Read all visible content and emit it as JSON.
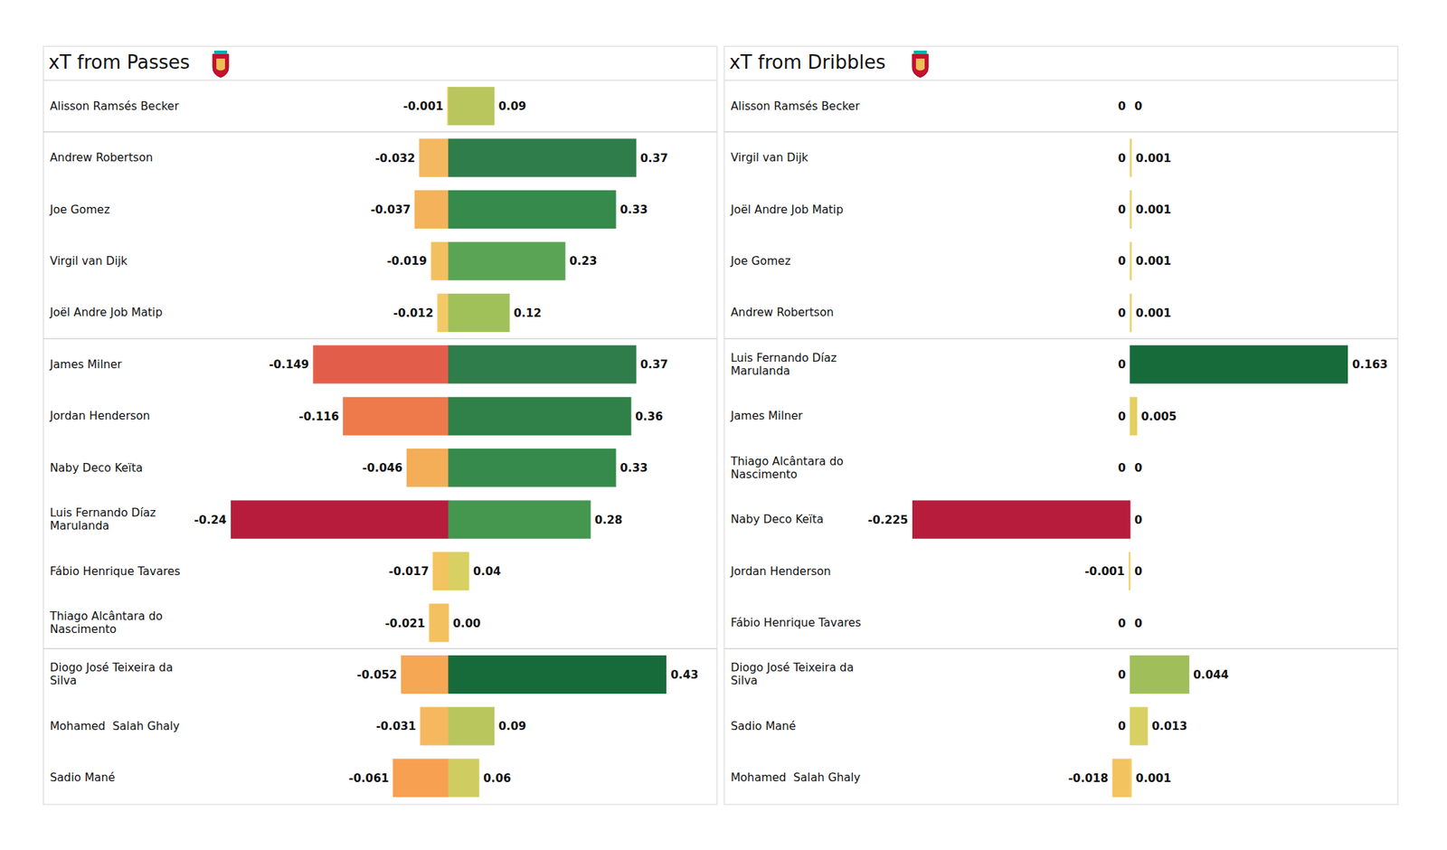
{
  "chart_data": [
    {
      "type": "bar",
      "orientation": "horizontal",
      "title": "xT from Passes",
      "data_labels": true,
      "tick_labels": "y",
      "categories": [
        "Alisson Ramsés Becker",
        "Andrew Robertson",
        "Joe Gomez",
        "Virgil van Dijk",
        "Joël Andre Job Matip",
        "James Milner",
        "Jordan Henderson",
        "Naby Deco Keïta",
        "Luis Fernando Díaz Marulanda",
        "Fábio Henrique Tavares",
        "Thiago Alcântara do Nascimento",
        "Diogo José Teixeira da Silva",
        "Mohamed  Salah Ghaly",
        "Sadio Mané"
      ],
      "xlim": [
        -0.24,
        0.43
      ],
      "series": [
        {
          "values": [
            -0.001,
            -0.032,
            -0.037,
            -0.019,
            -0.012,
            -0.149,
            -0.116,
            -0.046,
            -0.24,
            -0.017,
            -0.021,
            -0.052,
            -0.031,
            -0.061
          ],
          "colors": [
            "#f3d066",
            "#f4b860",
            "#f4b25a",
            "#f3c060",
            "#f3c966",
            "#e35e4a",
            "#ee7a4c",
            "#f4ae58",
            "#b71c3c",
            "#f3c35f",
            "#f3c15f",
            "#f5a753",
            "#f5b85e",
            "#f7a052"
          ]
        },
        {
          "values": [
            0.09,
            0.37,
            0.33,
            0.23,
            0.12,
            0.37,
            0.36,
            0.33,
            0.28,
            0.04,
            0,
            0.43,
            0.09,
            0.06
          ],
          "value_labels": [
            "0.09",
            "0.37",
            "0.33",
            "0.23",
            "0.12",
            "0.37",
            "0.36",
            "0.33",
            "0.28",
            "0.04",
            "0.00",
            "0.43",
            "0.09",
            "0.06"
          ],
          "colors": [
            "#b9c65e",
            "#2e7d4a",
            "#358a4c",
            "#5aa456",
            "#a0c05a",
            "#2e7d4a",
            "#308049",
            "#358a4c",
            "#45964f",
            "#d8d062",
            "#ead160",
            "#176b3a",
            "#b9c65e",
            "#cfcd62"
          ]
        }
      ]
    },
    {
      "type": "bar",
      "orientation": "horizontal",
      "title": "xT from Dribbles",
      "data_labels": true,
      "tick_labels": "y",
      "categories": [
        "Alisson Ramsés Becker",
        "Virgil van Dijk",
        "Joël Andre Job Matip",
        "Joe Gomez",
        "Andrew Robertson",
        "Luis Fernando Díaz Marulanda",
        "James Milner",
        "Thiago Alcântara do Nascimento",
        "Naby Deco Keïta",
        "Jordan Henderson",
        "Fábio Henrique Tavares",
        "Diogo José Teixeira da Silva",
        "Sadio Mané",
        "Mohamed  Salah Ghaly"
      ],
      "xlim": [
        -0.225,
        0.163
      ],
      "series": [
        {
          "values": [
            0,
            0,
            0,
            0,
            0,
            0,
            0,
            0,
            -0.225,
            -0.001,
            0,
            0,
            0,
            -0.018
          ],
          "colors": [
            "#f1d06a",
            "#f1d06a",
            "#f1d06a",
            "#f1d06a",
            "#f1d06a",
            "#f1d06a",
            "#f1d06a",
            "#f1d06a",
            "#b71c3c",
            "#efd069",
            "#f1d06a",
            "#f1d06a",
            "#f1d06a",
            "#f3c35f"
          ]
        },
        {
          "values": [
            0,
            0.001,
            0.001,
            0.001,
            0.001,
            0.163,
            0.005,
            0,
            0,
            0,
            0,
            0.044,
            0.013,
            0.001
          ],
          "colors": [
            "#f1d06a",
            "#efd069",
            "#efd069",
            "#efd069",
            "#efd069",
            "#176b3a",
            "#e5cf60",
            "#f1d06a",
            "#f1d06a",
            "#f1d06a",
            "#f1d06a",
            "#a0bf5a",
            "#d8d062",
            "#efd069"
          ]
        }
      ]
    }
  ]
}
